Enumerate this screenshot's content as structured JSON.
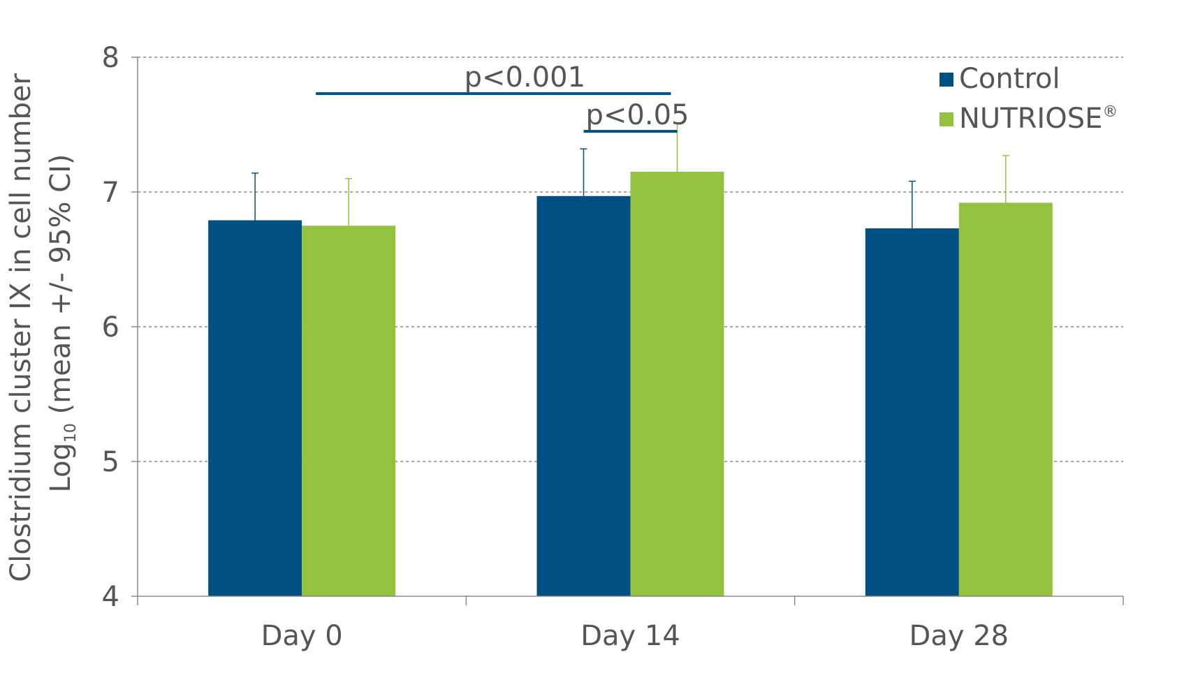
{
  "chart_data": {
    "type": "bar",
    "categories": [
      "Day 0",
      "Day 14",
      "Day 28"
    ],
    "series": [
      {
        "name": "Control",
        "color": "#005083",
        "values": [
          6.79,
          6.97,
          6.73
        ],
        "ci_upper": [
          7.14,
          7.32,
          7.08
        ]
      },
      {
        "name": "NUTRIOSE",
        "name_sup": "®",
        "color": "#93c33e",
        "values": [
          6.75,
          7.15,
          6.92
        ],
        "ci_upper": [
          7.1,
          7.51,
          7.27
        ]
      }
    ],
    "ylabel": {
      "line1": "Clostridium cluster IX in cell number",
      "line2_prefix": "Log",
      "line2_sub": "10",
      "line2_suffix": " (mean +/- 95% CI)"
    },
    "ylim": [
      4,
      8
    ],
    "yticks": [
      "4",
      "5",
      "6",
      "7",
      "8"
    ],
    "grid": "horizontal-dashed",
    "legend_position": "top-right",
    "significance": [
      {
        "label": "p<0.001",
        "from": "Day 0",
        "to": "Day 14",
        "y": 7.73
      },
      {
        "label": "p<0.05",
        "from": "Day 14",
        "to": "Day 14",
        "y": 7.45
      }
    ]
  }
}
